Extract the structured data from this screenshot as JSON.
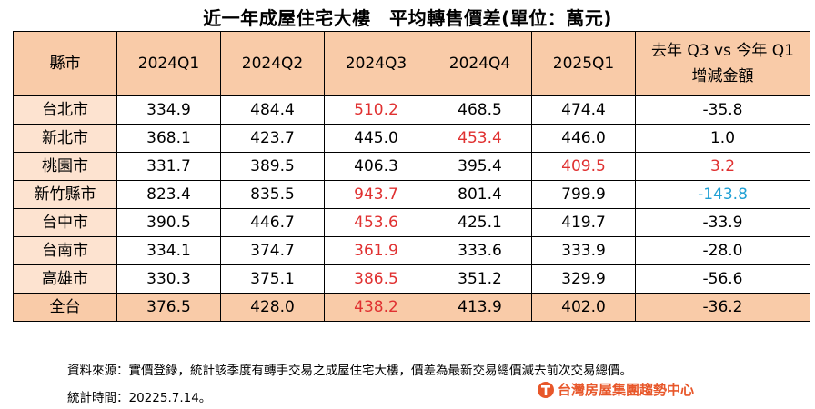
{
  "title": "近一年成屋住宅大樓　平均轉售價差(單位：萬元)",
  "table": {
    "headers": [
      "縣市",
      "2024Q1",
      "2024Q2",
      "2024Q3",
      "2024Q4",
      "2025Q1"
    ],
    "last_header_line1": "去年 Q3 vs 今年 Q1",
    "last_header_line2": "增減金額",
    "rows": [
      {
        "city": "台北市",
        "cells": [
          "334.9",
          "484.4",
          "510.2",
          "468.5",
          "474.4",
          "-35.8"
        ]
      },
      {
        "city": "新北市",
        "cells": [
          "368.1",
          "423.7",
          "445.0",
          "453.4",
          "446.0",
          "1.0"
        ]
      },
      {
        "city": "桃園市",
        "cells": [
          "331.7",
          "389.5",
          "406.3",
          "395.4",
          "409.5",
          "3.2"
        ]
      },
      {
        "city": "新竹縣市",
        "cells": [
          "823.4",
          "835.5",
          "943.7",
          "801.4",
          "799.9",
          "-143.8"
        ]
      },
      {
        "city": "台中市",
        "cells": [
          "390.5",
          "446.7",
          "453.6",
          "425.1",
          "419.7",
          "-33.9"
        ]
      },
      {
        "city": "台南市",
        "cells": [
          "334.1",
          "374.7",
          "361.9",
          "333.6",
          "333.9",
          "-28.0"
        ]
      },
      {
        "city": "高雄市",
        "cells": [
          "330.3",
          "375.1",
          "386.5",
          "351.2",
          "329.9",
          "-56.6"
        ]
      },
      {
        "city": "全台",
        "cells": [
          "376.5",
          "428.0",
          "438.2",
          "413.9",
          "402.0",
          "-36.2"
        ]
      }
    ]
  },
  "colors": {
    "header_bg": "#f9cba8",
    "city_bg": "#fde3d0",
    "highlight_red": "#e03131",
    "highlight_blue": "#1fa0d4",
    "brand_orange": "#e8572a"
  },
  "footer": {
    "note": "資料來源：實價登錄，統計該季度有轉手交易之成屋住宅大樓，價差為最新交易總價減去前次交易總價。",
    "stat_time": "統計時間：20225.7.14。",
    "logo_text": "台灣房屋集團趨勢中心",
    "logo_icon": "taiwan-realty-logo-icon"
  }
}
